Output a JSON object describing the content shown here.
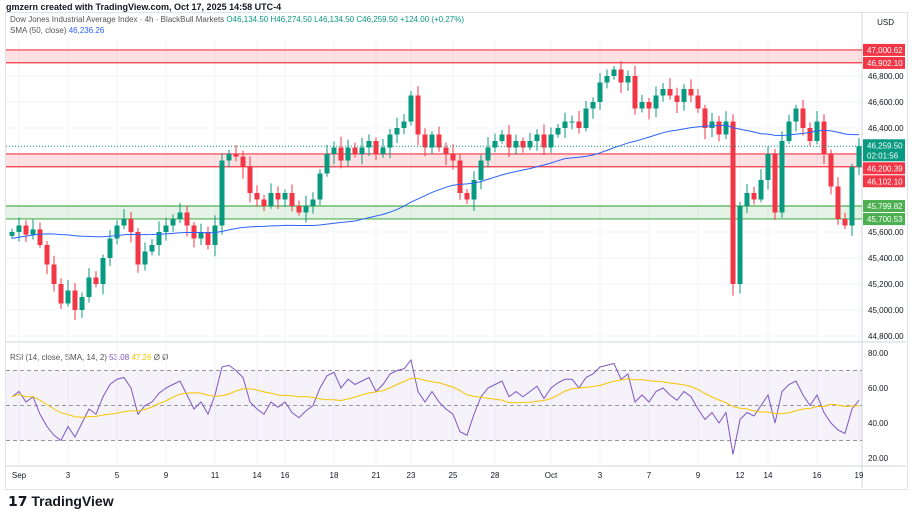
{
  "header": "gmzern created with TradingView.com, Oct 17, 2025 14:58 UTC-4",
  "legend": {
    "title": "Dow Jones Industrial Average Index · 4h · BlackBull Markets",
    "o": "O46,134.50",
    "h": "H46,274.50",
    "l": "L46,134.50",
    "c": "C46,259.50",
    "chg": "+124.00 (+0.27%)",
    "sma_label": "SMA (50, close)",
    "sma_value": "46,236.26"
  },
  "rsi_legend": {
    "label": "RSI (14, close, SMA, 14, 2)",
    "rsi": "53.08",
    "sma": "47.26",
    "x1": "Ø",
    "x2": "Ø"
  },
  "currency": "USD",
  "logo": "TradingView",
  "colors": {
    "up": "#089981",
    "down": "#f23645",
    "sma": "#2962ff",
    "rsi": "#7e57c2",
    "rsi_sma": "#f7c600",
    "red_zone": "#f23645",
    "green_zone": "#4caf50"
  },
  "chart_data": {
    "type": "candlestick",
    "price_axis": {
      "ticks": [
        "46,800.00",
        "46,600.00",
        "46,400.00",
        "45,600.00",
        "45,400.00",
        "45,200.00",
        "45,000.00",
        "44,800.00"
      ],
      "tick_values": [
        46800,
        46600,
        46400,
        45600,
        45400,
        45200,
        45000,
        44800
      ]
    },
    "price_labels": [
      {
        "text": "47,000.62",
        "value": 47000.62,
        "color": "#f23645"
      },
      {
        "text": "46,902.10",
        "value": 46902.1,
        "color": "#f23645"
      },
      {
        "text": "46,200.39",
        "value": 46200.39,
        "color": "#f23645"
      },
      {
        "text": "46,102.10",
        "value": 46102.1,
        "color": "#f23645"
      },
      {
        "text": "45,799.82",
        "value": 45799.82,
        "color": "#4caf50"
      },
      {
        "text": "45,700.53",
        "value": 45700.53,
        "color": "#4caf50"
      }
    ],
    "last_price": {
      "text": "46,259.50",
      "countdown": "02:01:56",
      "value": 46259.5
    },
    "zones": [
      {
        "from": 46902.1,
        "to": 47000.62,
        "type": "resistance"
      },
      {
        "from": 46102.1,
        "to": 46200.39,
        "type": "resistance"
      },
      {
        "from": 45700.53,
        "to": 45799.82,
        "type": "support"
      }
    ],
    "x_labels": [
      "Sep",
      "3",
      "5",
      "9",
      "11",
      "14",
      "16",
      "18",
      "21",
      "23",
      "25",
      "28",
      "Oct",
      "3",
      "7",
      "9",
      "12",
      "14",
      "16",
      "19"
    ],
    "x_label_index": [
      1,
      8,
      15,
      22,
      29,
      35,
      39,
      46,
      52,
      57,
      63,
      69,
      77,
      84,
      91,
      98,
      104,
      108,
      115,
      121
    ],
    "closes": [
      45600,
      45650,
      45580,
      45620,
      45500,
      45350,
      45200,
      45050,
      45150,
      45000,
      45100,
      45250,
      45200,
      45400,
      45550,
      45650,
      45700,
      45600,
      45350,
      45450,
      45500,
      45600,
      45650,
      45700,
      45750,
      45650,
      45550,
      45600,
      45500,
      45650,
      46150,
      46200,
      46180,
      46100,
      45900,
      45850,
      45800,
      45900,
      45850,
      45900,
      45800,
      45750,
      45800,
      45850,
      46050,
      46200,
      46250,
      46150,
      46250,
      46200,
      46250,
      46300,
      46200,
      46250,
      46350,
      46400,
      46450,
      46650,
      46350,
      46250,
      46350,
      46250,
      46200,
      46150,
      45900,
      45850,
      46000,
      46150,
      46250,
      46300,
      46350,
      46250,
      46300,
      46250,
      46300,
      46350,
      46250,
      46350,
      46400,
      46450,
      46450,
      46400,
      46550,
      46600,
      46750,
      46800,
      46850,
      46750,
      46800,
      46550,
      46600,
      46550,
      46650,
      46700,
      46650,
      46600,
      46700,
      46650,
      46550,
      46400,
      46450,
      46350,
      46450,
      45200,
      45800,
      45900,
      45850,
      46000,
      46200,
      45750,
      46300,
      46450,
      46550,
      46400,
      46300,
      46450,
      46200,
      45950,
      45700,
      45650,
      46100,
      46260
    ],
    "rsi": {
      "ticks": [
        "80.00",
        "60.00",
        "40.00",
        "20.00"
      ],
      "tick_values": [
        80,
        60,
        40,
        20
      ],
      "bands": [
        70,
        50,
        30
      ],
      "values": [
        55,
        58,
        52,
        55,
        45,
        38,
        33,
        30,
        38,
        32,
        40,
        48,
        45,
        55,
        62,
        65,
        66,
        60,
        45,
        50,
        52,
        57,
        60,
        62,
        64,
        56,
        48,
        52,
        45,
        56,
        72,
        73,
        70,
        66,
        52,
        48,
        45,
        52,
        49,
        52,
        46,
        43,
        47,
        50,
        60,
        67,
        69,
        60,
        65,
        62,
        64,
        66,
        58,
        62,
        68,
        70,
        71,
        76,
        58,
        52,
        58,
        52,
        48,
        45,
        35,
        33,
        45,
        55,
        60,
        62,
        64,
        55,
        58,
        55,
        58,
        61,
        54,
        60,
        63,
        65,
        65,
        60,
        66,
        68,
        72,
        73,
        74,
        65,
        68,
        52,
        56,
        52,
        58,
        60,
        56,
        53,
        58,
        55,
        48,
        42,
        46,
        40,
        46,
        22,
        42,
        46,
        44,
        50,
        56,
        40,
        58,
        62,
        64,
        56,
        50,
        56,
        46,
        40,
        36,
        34,
        48,
        53
      ]
    }
  }
}
